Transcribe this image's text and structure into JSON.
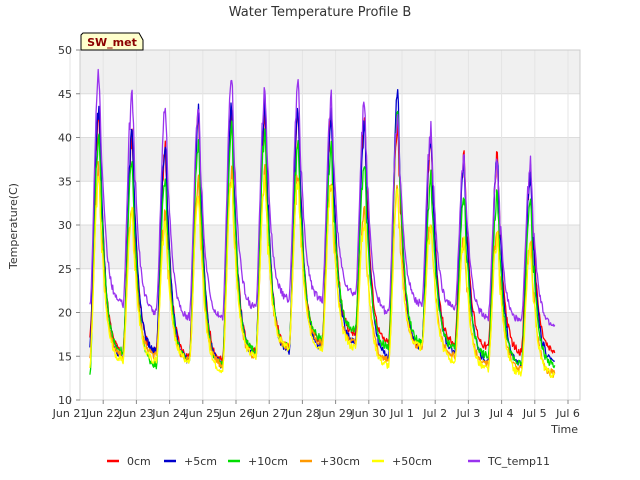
{
  "chart_data": {
    "type": "line",
    "title": "Water Temperature Profile B",
    "xlabel": "Time",
    "ylabel": "Temperature(C)",
    "ylim": [
      10,
      50
    ],
    "yticks": [
      10,
      15,
      20,
      25,
      30,
      35,
      40,
      45,
      50
    ],
    "xlim": [
      0,
      16
    ],
    "xticks": [
      {
        "x": 0,
        "label": "Jun 21"
      },
      {
        "x": 1,
        "label": "Jun 22"
      },
      {
        "x": 2,
        "label": "Jun 23"
      },
      {
        "x": 3,
        "label": "Jun 24"
      },
      {
        "x": 4,
        "label": "Jun 25"
      },
      {
        "x": 5,
        "label": "Jun 26"
      },
      {
        "x": 6,
        "label": "Jun 27"
      },
      {
        "x": 7,
        "label": "Jun 28"
      },
      {
        "x": 8,
        "label": "Jun 29"
      },
      {
        "x": 9,
        "label": "Jun 30"
      },
      {
        "x": 10,
        "label": "Jul 1"
      },
      {
        "x": 11,
        "label": "Jul 2"
      },
      {
        "x": 12,
        "label": "Jul 3"
      },
      {
        "x": 13,
        "label": "Jul 4"
      },
      {
        "x": 14,
        "label": "Jul 5"
      },
      {
        "x": 15,
        "label": "Jul 6"
      }
    ],
    "grid": true,
    "badge": "SW_met",
    "legend_position": "bottom",
    "series": [
      {
        "name": "0cm",
        "color": "#ff0000",
        "mins": [
          17.0,
          15.5,
          15.5,
          15.0,
          14.5,
          15.5,
          16.0,
          16.5,
          17.5,
          16.5,
          16.0,
          16.5,
          16.0,
          15.5,
          15.5
        ],
        "peaks": [
          44.0,
          41.0,
          40.0,
          43.5,
          44.0,
          44.0,
          43.5,
          43.5,
          43.0,
          42.5,
          41.0,
          39.0,
          39.0,
          37.5,
          36.0
        ],
        "end": 17.5
      },
      {
        "name": "+5cm",
        "color": "#0000cc",
        "mins": [
          16.0,
          15.0,
          15.5,
          14.5,
          14.0,
          15.0,
          15.5,
          16.0,
          16.5,
          15.0,
          16.0,
          15.5,
          14.5,
          14.0,
          14.5
        ],
        "peaks": [
          45.0,
          41.5,
          40.5,
          44.0,
          45.0,
          45.0,
          44.5,
          44.0,
          42.5,
          46.0,
          41.5,
          38.0,
          39.0,
          37.0,
          35.5
        ],
        "end": 15.0
      },
      {
        "name": "+10cm",
        "color": "#00dd00",
        "mins": [
          13.0,
          15.5,
          14.0,
          14.5,
          14.0,
          15.5,
          16.0,
          17.0,
          18.0,
          16.0,
          16.5,
          16.0,
          15.0,
          14.0,
          14.0
        ],
        "peaks": [
          42.0,
          38.5,
          37.0,
          41.0,
          42.0,
          42.0,
          40.5,
          40.0,
          38.5,
          44.0,
          36.0,
          34.0,
          34.5,
          34.0,
          33.5
        ],
        "end": 14.5
      },
      {
        "name": "+30cm",
        "color": "#ff9900",
        "mins": [
          15.0,
          15.0,
          15.0,
          14.5,
          14.0,
          15.0,
          16.0,
          16.5,
          16.5,
          14.5,
          16.0,
          15.0,
          14.0,
          13.5,
          13.0
        ],
        "peaks": [
          37.5,
          33.5,
          32.5,
          36.0,
          37.0,
          37.0,
          37.0,
          36.0,
          32.5,
          35.5,
          31.5,
          29.5,
          30.5,
          29.0,
          27.0
        ],
        "end": 14.0
      },
      {
        "name": "+50cm",
        "color": "#ffff00",
        "mins": [
          14.0,
          14.5,
          14.5,
          14.5,
          13.5,
          15.0,
          16.0,
          16.0,
          16.0,
          14.0,
          16.0,
          14.5,
          13.5,
          13.0,
          12.8
        ],
        "peaks": [
          37.0,
          32.5,
          31.5,
          35.0,
          36.5,
          36.5,
          36.5,
          35.5,
          31.5,
          35.0,
          31.0,
          29.5,
          30.0,
          28.5,
          26.5
        ],
        "end": 14.0
      },
      {
        "name": "TC_temp11",
        "color": "#9933ee",
        "mins": [
          20.5,
          21.0,
          20.0,
          19.5,
          19.5,
          20.5,
          21.5,
          21.5,
          22.0,
          20.0,
          21.0,
          20.5,
          19.5,
          19.0,
          18.5
        ],
        "peaks": [
          48.5,
          46.5,
          44.5,
          44.5,
          48.0,
          46.5,
          47.0,
          45.5,
          45.0,
          44.0,
          42.0,
          38.5,
          38.0,
          38.0,
          38.0
        ],
        "end": 20.0
      }
    ]
  }
}
